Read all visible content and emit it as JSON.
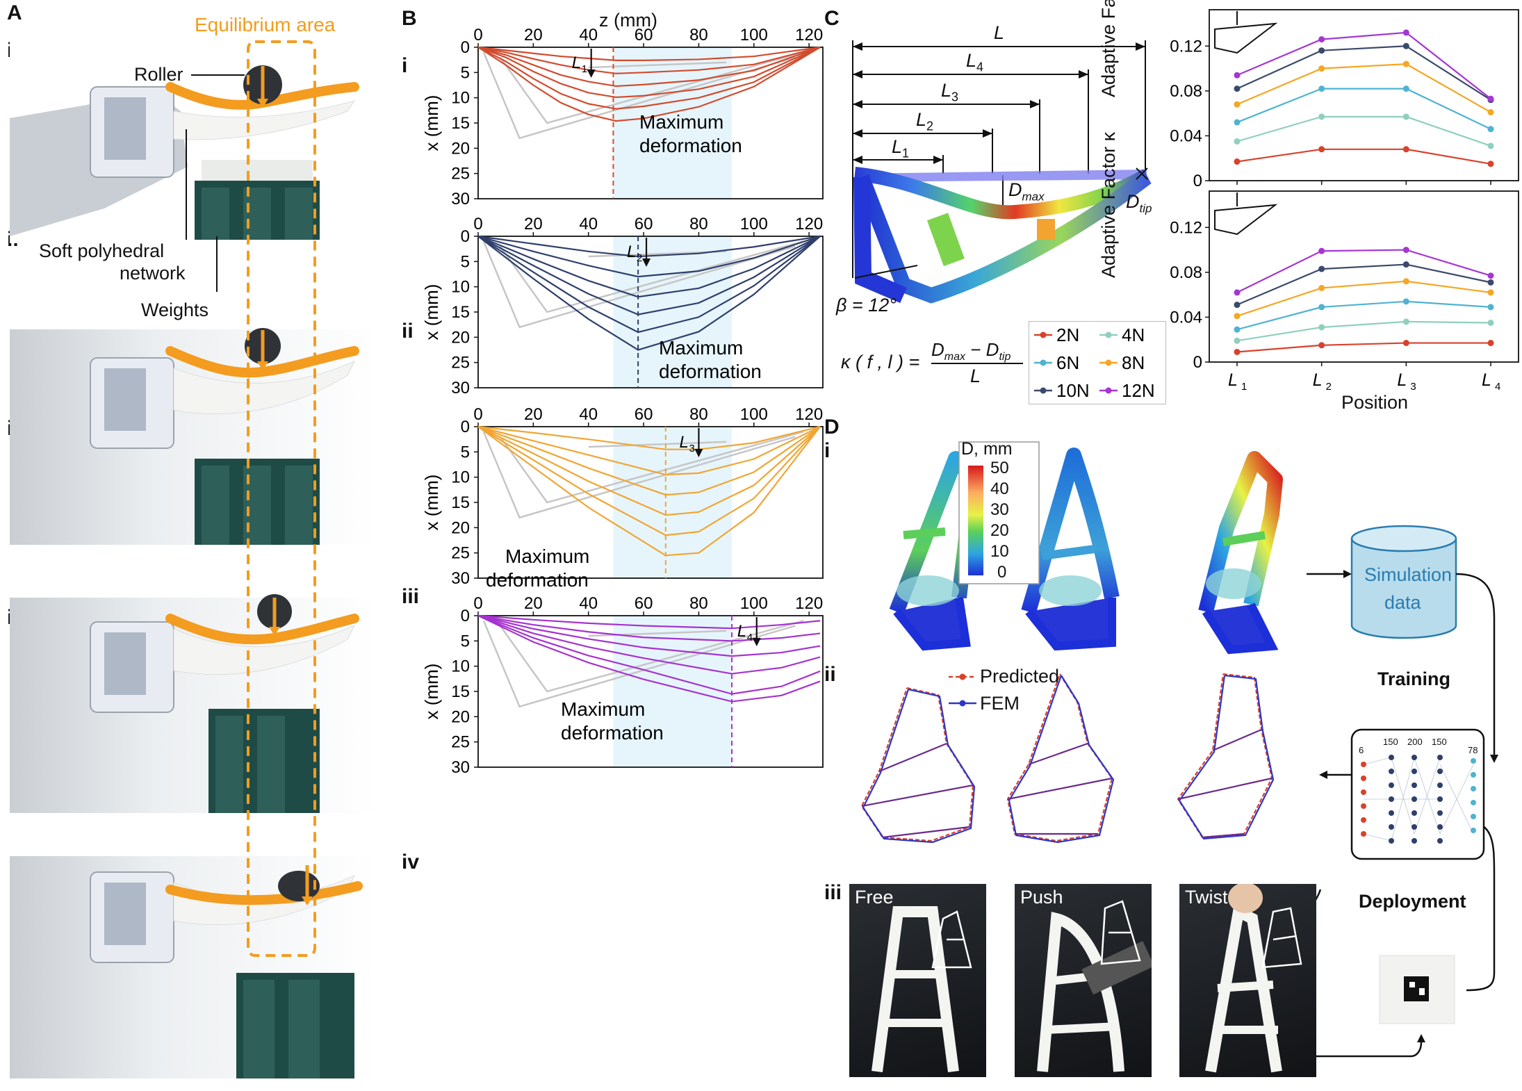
{
  "panels": {
    "A": {
      "letter": "A",
      "equilibrium_label": "Equilibrium area",
      "roller_label": "Roller",
      "network_label_1": "Soft polyhedral",
      "network_label_2": "network",
      "weights_label": "Weights",
      "rows": [
        "i",
        "ii",
        "iii",
        "iv"
      ]
    },
    "B": {
      "letter": "B",
      "xaxis_label": "z (mm)",
      "yaxis_label": "x (mm)",
      "annotation_1": "Maximum",
      "annotation_2": "deformation",
      "x_ticks": [
        "0",
        "20",
        "40",
        "60",
        "80",
        "100",
        "120"
      ],
      "y_ticks": [
        "0",
        "5",
        "10",
        "15",
        "20",
        "25",
        "30"
      ]
    },
    "C": {
      "letter": "C",
      "L": "L",
      "L1": "L",
      "L1sub": "1",
      "L2": "L",
      "L2sub": "2",
      "L3": "L",
      "L3sub": "3",
      "L4": "L",
      "L4sub": "4",
      "dmax": "D",
      "dmax_sub": "max",
      "dtip": "D",
      "dtip_sub": "tip",
      "beta": "β = 12°",
      "formula_lhs": "κ ( f , l ) =",
      "formula_num": "D",
      "formula_num_sub1": "max",
      "formula_num_mid": " − D",
      "formula_num_sub2": "tip",
      "formula_den": "L",
      "legend": [
        "2N",
        "4N",
        "6N",
        "8N",
        "10N",
        "12N"
      ],
      "ylabel_top": "Adaptive Factor κ",
      "ylabel_bottom": "Adaptive Factor κ",
      "xlabel": "Position",
      "y_ticks": [
        "0",
        "0.04",
        "0.08",
        "0.12"
      ],
      "x_ticks": [
        "L",
        "L",
        "L",
        "L"
      ],
      "x_tick_subs": [
        "1",
        "2",
        "3",
        "4"
      ]
    },
    "D": {
      "letter": "D",
      "rows": [
        "i",
        "ii",
        "iii"
      ],
      "colorbar_title": "D, mm",
      "colorbar_ticks": [
        "50",
        "40",
        "30",
        "20",
        "10",
        "0"
      ],
      "sim_line1": "Simulation",
      "sim_line2": "data",
      "training": "Training",
      "deployment": "Deployment",
      "legend_predicted": "Predicted",
      "legend_fem": "FEM",
      "nn_layers": [
        "6",
        "150",
        "200",
        "150",
        "78"
      ],
      "photo_labels": [
        "Free",
        "Push",
        "Twist"
      ]
    }
  },
  "chart_data": [
    {
      "type": "line",
      "panel": "B.i",
      "xlabel": "z (mm)",
      "ylabel": "x (mm)",
      "xlim": [
        0,
        125
      ],
      "ylim": [
        30,
        0
      ],
      "marker": "L",
      "marker_sub": "1",
      "marker_z": 41,
      "max_z": 49,
      "color": "#d24b2e",
      "shaded_z": [
        49,
        92
      ],
      "series": [
        {
          "x": [
            0,
            10,
            20,
            30,
            40,
            50,
            60,
            80,
            100,
            124
          ],
          "values": [
            0,
            0.6,
            1.2,
            1.8,
            2.2,
            2.6,
            2.6,
            2.4,
            1.8,
            0
          ]
        },
        {
          "x": [
            0,
            10,
            20,
            30,
            40,
            50,
            60,
            80,
            100,
            124
          ],
          "values": [
            0,
            1.0,
            2.3,
            3.5,
            4.5,
            5.2,
            5.0,
            4.5,
            3.4,
            0
          ]
        },
        {
          "x": [
            0,
            10,
            20,
            30,
            40,
            50,
            60,
            80,
            100,
            124
          ],
          "values": [
            0,
            1.5,
            3.5,
            5.5,
            6.8,
            7.7,
            7.4,
            6.5,
            4.6,
            0
          ]
        },
        {
          "x": [
            0,
            10,
            20,
            30,
            40,
            50,
            60,
            80,
            100,
            124
          ],
          "values": [
            0,
            2.0,
            4.8,
            7.2,
            9.0,
            9.9,
            9.6,
            8.3,
            5.8,
            0
          ]
        },
        {
          "x": [
            0,
            10,
            20,
            30,
            40,
            50,
            60,
            80,
            100,
            124
          ],
          "values": [
            0,
            2.8,
            6.2,
            9.2,
            11.2,
            12.2,
            11.7,
            10.0,
            6.9,
            0
          ]
        },
        {
          "x": [
            0,
            10,
            20,
            30,
            40,
            50,
            60,
            80,
            100,
            124
          ],
          "values": [
            0,
            3.5,
            7.5,
            11.0,
            13.3,
            14.6,
            14.1,
            11.8,
            7.8,
            0
          ]
        }
      ]
    },
    {
      "type": "line",
      "panel": "B.ii",
      "xlabel": "z (mm)",
      "ylabel": "x (mm)",
      "xlim": [
        0,
        125
      ],
      "ylim": [
        30,
        0
      ],
      "marker": "L",
      "marker_sub": "2",
      "marker_z": 61,
      "max_z": 58,
      "color": "#2f3f6b",
      "shaded_z": [
        49,
        92
      ],
      "series": [
        {
          "x": [
            0,
            20,
            40,
            58,
            80,
            100,
            124
          ],
          "values": [
            0,
            1.5,
            3.0,
            4.0,
            3.4,
            2.1,
            0
          ]
        },
        {
          "x": [
            0,
            20,
            40,
            58,
            80,
            100,
            124
          ],
          "values": [
            0,
            3.0,
            5.8,
            8.0,
            6.9,
            4.3,
            0
          ]
        },
        {
          "x": [
            0,
            20,
            40,
            58,
            80,
            100,
            124
          ],
          "values": [
            0,
            4.5,
            8.8,
            12.0,
            10.3,
            6.4,
            0
          ]
        },
        {
          "x": [
            0,
            20,
            40,
            58,
            80,
            100,
            124
          ],
          "values": [
            0,
            5.8,
            11.4,
            15.5,
            13.2,
            8.1,
            0
          ]
        },
        {
          "x": [
            0,
            20,
            40,
            58,
            80,
            100,
            124
          ],
          "values": [
            0,
            7.1,
            14.0,
            19.0,
            16.0,
            9.8,
            0
          ]
        },
        {
          "x": [
            0,
            20,
            40,
            58,
            80,
            100,
            124
          ],
          "values": [
            0,
            8.4,
            16.4,
            22.5,
            18.9,
            11.5,
            0
          ]
        }
      ]
    },
    {
      "type": "line",
      "panel": "B.iii",
      "xlabel": "z (mm)",
      "ylabel": "x (mm)",
      "xlim": [
        0,
        125
      ],
      "ylim": [
        30,
        0
      ],
      "marker": "L",
      "marker_sub": "3",
      "marker_z": 80,
      "max_z": 68,
      "color": "#f1a532",
      "shaded_z": [
        49,
        92
      ],
      "series": [
        {
          "x": [
            0,
            20,
            40,
            68,
            80,
            100,
            124
          ],
          "values": [
            0,
            1.2,
            2.5,
            4.5,
            4.5,
            3.2,
            0
          ]
        },
        {
          "x": [
            0,
            20,
            40,
            68,
            80,
            100,
            124
          ],
          "values": [
            0,
            2.8,
            5.6,
            9.5,
            9.2,
            6.4,
            0
          ]
        },
        {
          "x": [
            0,
            20,
            40,
            68,
            80,
            100,
            124
          ],
          "values": [
            0,
            4.0,
            8.2,
            13.5,
            13.0,
            9.0,
            0
          ]
        },
        {
          "x": [
            0,
            20,
            40,
            68,
            80,
            100,
            124
          ],
          "values": [
            0,
            5.3,
            10.8,
            17.5,
            16.9,
            11.6,
            0
          ]
        },
        {
          "x": [
            0,
            20,
            40,
            68,
            80,
            100,
            124
          ],
          "values": [
            0,
            6.6,
            13.3,
            21.5,
            20.8,
            14.2,
            0
          ]
        },
        {
          "x": [
            0,
            20,
            40,
            68,
            80,
            100,
            124
          ],
          "values": [
            0,
            8.0,
            16.0,
            25.5,
            25.0,
            17.0,
            0
          ]
        }
      ]
    },
    {
      "type": "line",
      "panel": "B.iv",
      "xlabel": "z (mm)",
      "ylabel": "x (mm)",
      "xlim": [
        0,
        125
      ],
      "ylim": [
        30,
        0
      ],
      "marker": "L",
      "marker_sub": "4",
      "marker_z": 101,
      "max_z": 92,
      "color": "#a533cf",
      "shaded_z": [
        49,
        92
      ],
      "series": [
        {
          "x": [
            0,
            20,
            40,
            60,
            92,
            110,
            124
          ],
          "values": [
            0,
            0.8,
            1.5,
            2.0,
            2.5,
            1.8,
            1.0
          ]
        },
        {
          "x": [
            0,
            20,
            40,
            60,
            92,
            110,
            124
          ],
          "values": [
            0,
            1.8,
            3.2,
            4.3,
            5.0,
            4.4,
            3.5
          ]
        },
        {
          "x": [
            0,
            20,
            40,
            60,
            92,
            110,
            124
          ],
          "values": [
            0,
            2.6,
            4.6,
            6.3,
            8.0,
            7.3,
            6.0
          ]
        },
        {
          "x": [
            0,
            20,
            40,
            60,
            92,
            110,
            124
          ],
          "values": [
            0,
            3.5,
            6.2,
            8.4,
            11.5,
            10.3,
            8.2
          ]
        },
        {
          "x": [
            0,
            20,
            40,
            60,
            92,
            110,
            124
          ],
          "values": [
            0,
            4.4,
            7.9,
            10.7,
            15.5,
            14.0,
            11.0
          ]
        },
        {
          "x": [
            0,
            20,
            40,
            60,
            92,
            110,
            124
          ],
          "values": [
            0,
            5.2,
            9.3,
            12.6,
            17.0,
            15.8,
            13.0
          ]
        }
      ]
    },
    {
      "type": "line",
      "panel": "C.top",
      "ylabel": "Adaptive Factor κ",
      "categories": [
        "L1",
        "L2",
        "L3",
        "L4"
      ],
      "ylim": [
        0,
        0.14
      ],
      "series": [
        {
          "name": "2N",
          "color": "#d9412b",
          "values": [
            0.017,
            0.028,
            0.028,
            0.015
          ]
        },
        {
          "name": "4N",
          "color": "#8fcfbf",
          "values": [
            0.035,
            0.057,
            0.057,
            0.031
          ]
        },
        {
          "name": "6N",
          "color": "#4fb3d1",
          "values": [
            0.052,
            0.082,
            0.082,
            0.046
          ]
        },
        {
          "name": "8N",
          "color": "#f5a623",
          "values": [
            0.068,
            0.1,
            0.104,
            0.061
          ]
        },
        {
          "name": "10N",
          "color": "#3b4a6b",
          "values": [
            0.082,
            0.116,
            0.12,
            0.072
          ]
        },
        {
          "name": "12N",
          "color": "#a536d3",
          "values": [
            0.094,
            0.126,
            0.132,
            0.073
          ]
        }
      ]
    },
    {
      "type": "line",
      "panel": "C.bottom",
      "ylabel": "Adaptive Factor κ",
      "xlabel": "Position",
      "categories": [
        "L1",
        "L2",
        "L3",
        "L4"
      ],
      "ylim": [
        0,
        0.14
      ],
      "series": [
        {
          "name": "2N",
          "color": "#d9412b",
          "values": [
            0.009,
            0.015,
            0.017,
            0.017
          ]
        },
        {
          "name": "4N",
          "color": "#8fcfbf",
          "values": [
            0.019,
            0.031,
            0.036,
            0.035
          ]
        },
        {
          "name": "6N",
          "color": "#4fb3d1",
          "values": [
            0.029,
            0.049,
            0.054,
            0.049
          ]
        },
        {
          "name": "8N",
          "color": "#f5a623",
          "values": [
            0.041,
            0.066,
            0.072,
            0.062
          ]
        },
        {
          "name": "10N",
          "color": "#3b4a6b",
          "values": [
            0.051,
            0.083,
            0.087,
            0.071
          ]
        },
        {
          "name": "12N",
          "color": "#a536d3",
          "values": [
            0.062,
            0.099,
            0.1,
            0.077
          ]
        }
      ]
    }
  ]
}
